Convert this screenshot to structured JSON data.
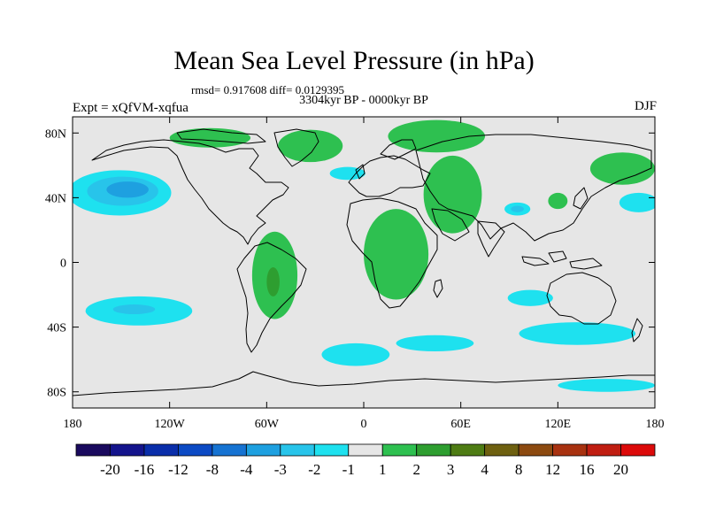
{
  "figure": {
    "title": "Mean Sea Level Pressure (in hPa)",
    "stats": "rmsd= 0.917608 diff= 0.0129395",
    "subtitle": "3304kyr BP - 0000kyr BP",
    "experiment": "Expt = xQfVM-xqfua",
    "season": "DJF"
  },
  "chart_data": {
    "type": "heatmap",
    "title": "Mean Sea Level Pressure (in hPa)",
    "variable": "Mean Sea Level Pressure anomaly",
    "units": "hPa",
    "x_range": [
      -180,
      180
    ],
    "y_range": [
      -90,
      90
    ],
    "x_ticks": [
      {
        "value": -180,
        "label": "180"
      },
      {
        "value": -120,
        "label": "120W"
      },
      {
        "value": -60,
        "label": "60W"
      },
      {
        "value": 0,
        "label": "0"
      },
      {
        "value": 60,
        "label": "60E"
      },
      {
        "value": 120,
        "label": "120E"
      },
      {
        "value": 180,
        "label": "180"
      }
    ],
    "y_ticks": [
      {
        "value": 80,
        "label": "80N"
      },
      {
        "value": 40,
        "label": "40N"
      },
      {
        "value": 0,
        "label": "0"
      },
      {
        "value": -40,
        "label": "40S"
      },
      {
        "value": -80,
        "label": "80S"
      }
    ],
    "colorbar": {
      "colors": [
        "#1a0a5e",
        "#14148c",
        "#0a2eaa",
        "#0c4ac4",
        "#1673d2",
        "#1ea0e0",
        "#28c4ea",
        "#1ee1ef",
        "#e6e6e6",
        "#2ec050",
        "#2e9e30",
        "#4e7c14",
        "#6e6010",
        "#8c4a10",
        "#a83210",
        "#c01e12",
        "#dc0a0a"
      ],
      "labels": [
        "-20",
        "-16",
        "-12",
        "-8",
        "-4",
        "-3",
        "-2",
        "-1",
        "1",
        "2",
        "3",
        "4",
        "8",
        "12",
        "16",
        "20"
      ]
    },
    "anomaly_regions": [
      {
        "name": "north-pacific-low",
        "level": -1,
        "lon": -151,
        "lat": 43,
        "rlon": 32,
        "rlat": 14
      },
      {
        "name": "north-pacific-low",
        "level": -2,
        "lon": -149,
        "lat": 44,
        "rlon": 22,
        "rlat": 9
      },
      {
        "name": "north-pacific-low",
        "level": -3,
        "lon": -146,
        "lat": 45,
        "rlon": 13,
        "rlat": 5
      },
      {
        "name": "south-pacific-low",
        "level": -1,
        "lon": -139,
        "lat": -30,
        "rlon": 33,
        "rlat": 9
      },
      {
        "name": "south-pacific-low",
        "level": -2,
        "lon": -142,
        "lat": -29,
        "rlon": 13,
        "rlat": 3
      },
      {
        "name": "north-atlantic-low",
        "level": -1,
        "lon": -10,
        "lat": 55,
        "rlon": 11,
        "rlat": 4
      },
      {
        "name": "north-pacific-east-low",
        "level": -1,
        "lon": 170,
        "lat": 37,
        "rlon": 12,
        "rlat": 6
      },
      {
        "name": "southern-indian-low",
        "level": -1,
        "lon": 103,
        "lat": -22,
        "rlon": 14,
        "rlat": 5
      },
      {
        "name": "east-pacific-low",
        "level": -1,
        "lon": 132,
        "lat": -44,
        "rlon": 36,
        "rlat": 7
      },
      {
        "name": "southern-ocean-low",
        "level": -1,
        "lon": -5,
        "lat": -57,
        "rlon": 21,
        "rlat": 7
      },
      {
        "name": "southern-ocean-low",
        "level": -1,
        "lon": 44,
        "lat": -50,
        "rlon": 24,
        "rlat": 5
      },
      {
        "name": "tibet-low",
        "level": -1,
        "lon": 95,
        "lat": 33,
        "rlon": 8,
        "rlat": 4
      },
      {
        "name": "tibet-low",
        "level": -2,
        "lon": 95,
        "lat": 33,
        "rlon": 4,
        "rlat": 2
      },
      {
        "name": "antarctic-coast-low",
        "level": -1,
        "lon": 150,
        "lat": -76,
        "rlon": 30,
        "rlat": 4
      },
      {
        "name": "africa-high",
        "level": 1,
        "lon": 20,
        "lat": 5,
        "rlon": 20,
        "rlat": 28
      },
      {
        "name": "asia-high",
        "level": 1,
        "lon": 55,
        "lat": 42,
        "rlon": 18,
        "rlat": 24
      },
      {
        "name": "arctic-high",
        "level": 1,
        "lon": 45,
        "lat": 78,
        "rlon": 30,
        "rlat": 10
      },
      {
        "name": "south-america-high",
        "level": 1,
        "lon": -55,
        "lat": -8,
        "rlon": 14,
        "rlat": 27
      },
      {
        "name": "south-america-high",
        "level": 2,
        "lon": -56,
        "lat": -12,
        "rlon": 4,
        "rlat": 9
      },
      {
        "name": "greenland-high",
        "level": 1,
        "lon": -33,
        "lat": 72,
        "rlon": 20,
        "rlat": 10
      },
      {
        "name": "canada-high",
        "level": 1,
        "lon": -95,
        "lat": 77,
        "rlon": 25,
        "rlat": 6
      },
      {
        "name": "east-asia-high",
        "level": 1,
        "lon": 120,
        "lat": 38,
        "rlon": 6,
        "rlat": 5
      },
      {
        "name": "far-east-high",
        "level": 1,
        "lon": 160,
        "lat": 58,
        "rlon": 20,
        "rlat": 10
      }
    ]
  }
}
